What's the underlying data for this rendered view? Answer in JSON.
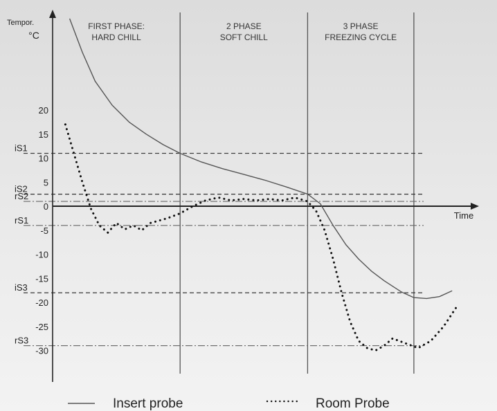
{
  "chart_data": {
    "type": "line",
    "title": "",
    "ylabel_line1": "Tempor.",
    "ylabel_line2": "°C",
    "xlabel": "Time",
    "ylim": [
      -38,
      40
    ],
    "xlim": [
      0,
      100
    ],
    "y_ticks": [
      20,
      15,
      10,
      5,
      0,
      -5,
      -10,
      -15,
      -20,
      -25,
      -30
    ],
    "phase_boundaries": [
      30,
      60,
      85
    ],
    "phases": [
      {
        "line1": "FIRST PHASE:",
        "line2": "HARD CHILL",
        "x": 15
      },
      {
        "line1": "2 PHASE",
        "line2": "SOFT CHILL",
        "x": 45
      },
      {
        "line1": "3 PHASE",
        "line2": "FREEZING CYCLE",
        "x": 72.5
      }
    ],
    "thresholds": [
      {
        "label": "iS1",
        "value": 11,
        "style": "dashed"
      },
      {
        "label": "iS2",
        "value": 2.5,
        "style": "dashed"
      },
      {
        "label": "rS2",
        "value": 1,
        "style": "dashdot"
      },
      {
        "label": "rS1",
        "value": -4,
        "style": "dashdot"
      },
      {
        "label": "iS3",
        "value": -18,
        "style": "dashed"
      },
      {
        "label": "rS3",
        "value": -29,
        "style": "dashdot"
      }
    ],
    "series": [
      {
        "name": "Insert probe",
        "style": "solid",
        "points": [
          [
            4,
            39
          ],
          [
            7,
            32
          ],
          [
            10,
            26
          ],
          [
            14,
            21
          ],
          [
            18,
            17.5
          ],
          [
            22,
            15
          ],
          [
            26,
            12.8
          ],
          [
            30,
            11
          ],
          [
            35,
            9.2
          ],
          [
            40,
            7.8
          ],
          [
            45,
            6.6
          ],
          [
            50,
            5.4
          ],
          [
            55,
            4
          ],
          [
            60,
            2.5
          ],
          [
            63,
            0.5
          ],
          [
            66,
            -4
          ],
          [
            69,
            -8
          ],
          [
            72,
            -11
          ],
          [
            75,
            -13.5
          ],
          [
            78,
            -15.5
          ],
          [
            82,
            -17.8
          ],
          [
            85,
            -19
          ],
          [
            88,
            -19.2
          ],
          [
            91,
            -18.8
          ],
          [
            94,
            -17.6
          ]
        ]
      },
      {
        "name": "Room Probe",
        "style": "dotted",
        "points": [
          [
            3,
            17
          ],
          [
            5,
            11
          ],
          [
            7,
            5
          ],
          [
            9,
            -0.5
          ],
          [
            11,
            -4
          ],
          [
            13,
            -5.5
          ],
          [
            15,
            -3.5
          ],
          [
            17,
            -4.8
          ],
          [
            19,
            -4
          ],
          [
            21,
            -5
          ],
          [
            23,
            -3.5
          ],
          [
            25,
            -3
          ],
          [
            27,
            -2.5
          ],
          [
            30,
            -1.5
          ],
          [
            33,
            0
          ],
          [
            36,
            1.2
          ],
          [
            39,
            1.8
          ],
          [
            42,
            1.2
          ],
          [
            45,
            1.5
          ],
          [
            48,
            1.2
          ],
          [
            51,
            1.5
          ],
          [
            54,
            1.2
          ],
          [
            57,
            1.8
          ],
          [
            60,
            1
          ],
          [
            62,
            -1
          ],
          [
            64,
            -5
          ],
          [
            66,
            -11
          ],
          [
            68,
            -18
          ],
          [
            70,
            -24
          ],
          [
            72,
            -28
          ],
          [
            74,
            -29.5
          ],
          [
            76,
            -30
          ],
          [
            78,
            -29
          ],
          [
            80,
            -27.5
          ],
          [
            83,
            -28.5
          ],
          [
            86,
            -29.5
          ],
          [
            89,
            -28
          ],
          [
            92,
            -25
          ],
          [
            95,
            -21
          ]
        ]
      }
    ]
  },
  "legend": {
    "insert_label": "Insert probe",
    "room_label": "Room Probe"
  }
}
